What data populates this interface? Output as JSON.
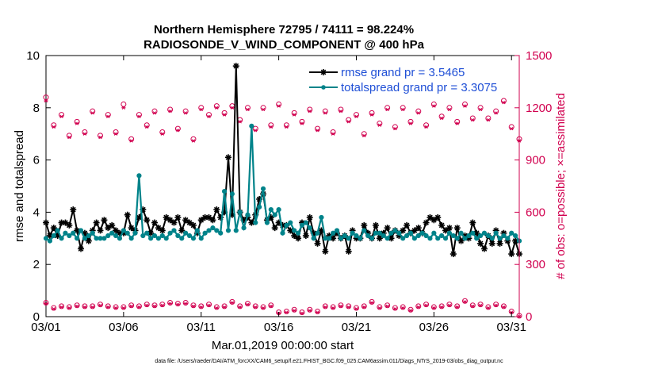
{
  "colors": {
    "rmse": "#000000",
    "spread": "#00838a",
    "obs": "#d1004f",
    "legend_text": "#1f4fd6"
  },
  "chart_data": {
    "type": "line",
    "title_line1": "Northern Hemisphere 72795 / 74111 = 98.224%",
    "title_line2": "RADIOSONDE_V_WIND_COMPONENT @ 400 hPa",
    "xlabel": "Mar.01,2019 00:00:00 start",
    "ylabel_left": "rmse and totalspread",
    "ylabel_right": "# of obs: o=possible; ×=assimilated",
    "xlim": [
      1,
      31.5
    ],
    "ylim_left": [
      0,
      10
    ],
    "ylim_right": [
      0,
      1500
    ],
    "x_ticks": [
      1,
      6,
      11,
      16,
      21,
      26,
      31
    ],
    "x_tick_labels": [
      "03/01",
      "03/06",
      "03/11",
      "03/16",
      "03/21",
      "03/26",
      "03/31"
    ],
    "y_ticks_left": [
      0,
      2,
      4,
      6,
      8,
      10
    ],
    "y_ticks_right": [
      0,
      300,
      600,
      900,
      1200,
      1500
    ],
    "legend": [
      {
        "name": "rmse grand pr = 3.5465",
        "key": "rmse"
      },
      {
        "name": "totalspread grand pr = 3.3075",
        "key": "spread"
      }
    ],
    "x": [
      1.0,
      1.25,
      1.5,
      1.75,
      2.0,
      2.25,
      2.5,
      2.75,
      3.0,
      3.25,
      3.5,
      3.75,
      4.0,
      4.25,
      4.5,
      4.75,
      5.0,
      5.25,
      5.5,
      5.75,
      6.0,
      6.25,
      6.5,
      6.75,
      7.0,
      7.25,
      7.5,
      7.75,
      8.0,
      8.25,
      8.5,
      8.75,
      9.0,
      9.25,
      9.5,
      9.75,
      10.0,
      10.25,
      10.5,
      10.75,
      11.0,
      11.25,
      11.5,
      11.75,
      12.0,
      12.25,
      12.5,
      12.75,
      13.0,
      13.25,
      13.5,
      13.75,
      14.0,
      14.25,
      14.5,
      14.75,
      15.0,
      15.25,
      15.5,
      15.75,
      16.0,
      16.25,
      16.5,
      16.75,
      17.0,
      17.25,
      17.5,
      17.75,
      18.0,
      18.25,
      18.5,
      18.75,
      19.0,
      19.25,
      19.5,
      19.75,
      20.0,
      20.25,
      20.5,
      20.75,
      21.0,
      21.25,
      21.5,
      21.75,
      22.0,
      22.25,
      22.5,
      22.75,
      23.0,
      23.25,
      23.5,
      23.75,
      24.0,
      24.25,
      24.5,
      24.75,
      25.0,
      25.25,
      25.5,
      25.75,
      26.0,
      26.25,
      26.5,
      26.75,
      27.0,
      27.25,
      27.5,
      27.75,
      28.0,
      28.25,
      28.5,
      28.75,
      29.0,
      29.25,
      29.5,
      29.75,
      30.0,
      30.25,
      30.5,
      30.75,
      31.0,
      31.25,
      31.5
    ],
    "series": [
      {
        "name": "rmse",
        "values": [
          3.6,
          3.1,
          3.4,
          3.1,
          3.6,
          3.6,
          3.5,
          4.1,
          3.3,
          2.6,
          3.2,
          2.9,
          3.3,
          3.6,
          3.3,
          3.7,
          3.4,
          3.5,
          3.3,
          3.2,
          3.2,
          3.9,
          3.4,
          3.3,
          3.8,
          4.1,
          3.7,
          3.2,
          3.6,
          3.4,
          3.3,
          3.8,
          3.7,
          3.6,
          3.8,
          3.3,
          3.7,
          3.6,
          3.5,
          3.2,
          3.7,
          3.8,
          3.8,
          3.7,
          4.1,
          3.8,
          4.0,
          6.1,
          3.9,
          9.6,
          4.0,
          3.7,
          3.8,
          3.6,
          3.9,
          4.5,
          4.7,
          3.7,
          3.8,
          3.4,
          3.6,
          3.5,
          3.5,
          3.3,
          3.1,
          3.0,
          3.6,
          3.1,
          3.8,
          3.2,
          2.8,
          3.3,
          2.5,
          3.1,
          3.0,
          3.2,
          3.0,
          3.1,
          2.5,
          3.3,
          3.0,
          3.0,
          3.5,
          3.2,
          3.0,
          3.5,
          3.0,
          3.2,
          3.4,
          3.0,
          3.3,
          3.1,
          3.3,
          3.5,
          3.2,
          3.3,
          3.4,
          3.2,
          3.6,
          3.8,
          3.7,
          3.8,
          3.5,
          3.3,
          3.4,
          2.4,
          3.4,
          2.9,
          3.1,
          3.0,
          3.6,
          3.2,
          2.8,
          2.6,
          3.1,
          2.8,
          3.3,
          2.8,
          3.2,
          2.9,
          2.4,
          2.9,
          2.4
        ]
      },
      {
        "name": "totalspread",
        "values": [
          3.0,
          2.9,
          3.1,
          3.3,
          3.0,
          3.2,
          3.1,
          3.2,
          3.0,
          3.3,
          3.0,
          3.1,
          3.2,
          3.0,
          3.0,
          3.0,
          3.1,
          3.2,
          3.1,
          3.0,
          3.3,
          3.2,
          3.0,
          3.2,
          5.4,
          3.1,
          3.2,
          3.0,
          3.1,
          3.0,
          3.1,
          3.0,
          3.2,
          3.3,
          3.1,
          3.0,
          3.2,
          3.1,
          3.0,
          3.3,
          3.0,
          3.2,
          3.3,
          3.4,
          3.3,
          3.2,
          4.8,
          3.3,
          4.7,
          3.3,
          4.0,
          3.4,
          3.9,
          7.3,
          3.6,
          4.2,
          4.9,
          3.6,
          4.1,
          3.9,
          4.1,
          3.2,
          3.5,
          3.6,
          3.3,
          3.2,
          3.5,
          3.6,
          3.4,
          3.0,
          3.2,
          3.8,
          3.0,
          3.0,
          3.2,
          3.3,
          3.0,
          3.1,
          3.0,
          3.2,
          3.1,
          3.0,
          3.3,
          3.1,
          3.0,
          3.2,
          3.2,
          3.1,
          3.0,
          3.2,
          3.3,
          3.2,
          3.0,
          3.1,
          3.2,
          3.0,
          3.1,
          3.2,
          3.1,
          3.0,
          3.2,
          3.0,
          3.1,
          3.0,
          3.2,
          3.1,
          3.0,
          3.2,
          3.0,
          3.1,
          3.2,
          3.0,
          3.1,
          3.2,
          3.1,
          3.0,
          3.2,
          3.0,
          3.1,
          3.0,
          3.2,
          3.1,
          2.9
        ]
      }
    ],
    "obs_days": [
      1.0,
      1.5,
      2.0,
      2.5,
      3.0,
      3.5,
      4.0,
      4.5,
      5.0,
      5.5,
      6.0,
      6.5,
      7.0,
      7.5,
      8.0,
      8.5,
      9.0,
      9.5,
      10.0,
      10.5,
      11.0,
      11.5,
      12.0,
      12.5,
      13.0,
      13.5,
      14.0,
      14.5,
      15.0,
      15.5,
      16.0,
      16.5,
      17.0,
      17.5,
      18.0,
      18.5,
      19.0,
      19.5,
      20.0,
      20.5,
      21.0,
      21.5,
      22.0,
      22.5,
      23.0,
      23.5,
      24.0,
      24.5,
      25.0,
      25.5,
      26.0,
      26.5,
      27.0,
      27.5,
      28.0,
      28.5,
      29.0,
      29.5,
      30.0,
      30.5,
      31.0,
      31.5
    ],
    "obs_possible": [
      1260,
      1100,
      1160,
      1040,
      1120,
      1060,
      1180,
      1040,
      1160,
      1060,
      1220,
      1020,
      1160,
      1100,
      1180,
      1060,
      1190,
      1080,
      1180,
      1020,
      1200,
      1160,
      1210,
      1170,
      1210,
      1130,
      1200,
      1080,
      1200,
      1100,
      1220,
      1100,
      1170,
      1120,
      1190,
      1080,
      1180,
      1060,
      1190,
      1130,
      1160,
      1050,
      1170,
      1110,
      1200,
      1090,
      1200,
      1120,
      1180,
      1100,
      1220,
      1150,
      1200,
      1120,
      1220,
      1140,
      1200,
      1140,
      1180,
      1240,
      1090,
      1020
    ],
    "obs_assimilated": [
      1240,
      1090,
      1150,
      1030,
      1110,
      1050,
      1170,
      1030,
      1150,
      1050,
      1200,
      1010,
      1150,
      1090,
      1170,
      1050,
      1180,
      1070,
      1170,
      1010,
      1190,
      1150,
      1200,
      1160,
      1200,
      1120,
      1190,
      1070,
      1190,
      1090,
      1210,
      1090,
      1160,
      1110,
      1180,
      1070,
      1170,
      1050,
      1180,
      1120,
      1150,
      1040,
      1160,
      1100,
      1190,
      1080,
      1190,
      1110,
      1170,
      1090,
      1210,
      1140,
      1190,
      1110,
      1210,
      1130,
      1190,
      1130,
      1170,
      1230,
      1080,
      1010
    ],
    "obs_low_days": [
      1.0,
      1.5,
      2.0,
      2.5,
      3.0,
      3.5,
      4.0,
      4.5,
      5.0,
      5.5,
      6.0,
      6.5,
      7.0,
      7.5,
      8.0,
      8.5,
      9.0,
      9.5,
      10.0,
      10.5,
      11.0,
      11.5,
      12.0,
      12.5,
      13.0,
      13.5,
      14.0,
      14.5,
      15.0,
      15.5,
      16.0,
      16.5,
      17.0,
      17.5,
      18.0,
      18.5,
      19.0,
      19.5,
      20.0,
      20.5,
      21.0,
      21.5,
      22.0,
      22.5,
      23.0,
      23.5,
      24.0,
      24.5,
      25.0,
      25.5,
      26.0,
      26.5,
      27.0,
      27.5,
      28.0,
      28.5,
      29.0,
      29.5,
      30.0,
      30.5,
      31.0,
      31.5
    ],
    "obs_low_possible": [
      80,
      50,
      60,
      55,
      65,
      60,
      60,
      70,
      60,
      55,
      55,
      65,
      60,
      70,
      65,
      70,
      80,
      75,
      80,
      65,
      60,
      70,
      55,
      60,
      85,
      60,
      75,
      60,
      55,
      65,
      25,
      30,
      40,
      25,
      40,
      30,
      60,
      55,
      65,
      60,
      50,
      60,
      85,
      55,
      65,
      50,
      55,
      40,
      60,
      70,
      55,
      60,
      70,
      60,
      90,
      65,
      70,
      55,
      70,
      60,
      30,
      5
    ],
    "obs_low_assimilated": [
      75,
      45,
      55,
      50,
      60,
      55,
      55,
      65,
      55,
      50,
      50,
      60,
      55,
      65,
      60,
      65,
      75,
      70,
      75,
      60,
      55,
      65,
      50,
      55,
      80,
      55,
      70,
      55,
      50,
      60,
      20,
      25,
      35,
      20,
      35,
      25,
      55,
      50,
      60,
      55,
      45,
      55,
      80,
      50,
      60,
      45,
      50,
      35,
      55,
      65,
      50,
      55,
      65,
      55,
      85,
      60,
      65,
      50,
      65,
      55,
      25,
      0
    ]
  },
  "footer": "data file: /Users/raeder/DAI/ATM_forcXX/CAM6_setup/f.e21.FHIST_BGC.f09_025.CAM6assim.011/Diags_NTrS_2019-03/obs_diag_output.nc"
}
